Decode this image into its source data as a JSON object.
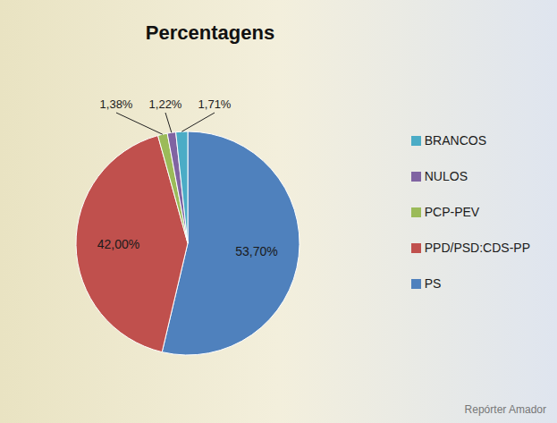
{
  "chart_data": {
    "type": "pie",
    "title": "Percentagens",
    "categories": [
      "PS",
      "PPD/PSD:CDS-PP",
      "PCP-PEV",
      "NULOS",
      "BRANCOS"
    ],
    "values": [
      53.7,
      42.0,
      1.38,
      1.22,
      1.71
    ],
    "value_labels": [
      "53,70%",
      "42,00%",
      "1,38%",
      "1,22%",
      "1,71%"
    ],
    "colors": [
      "#4f81bd",
      "#c0504d",
      "#9bbb59",
      "#8064a2",
      "#4bacc6"
    ],
    "data_labels": true,
    "legend": "right",
    "annotations": [
      "Repórter Amador"
    ]
  }
}
